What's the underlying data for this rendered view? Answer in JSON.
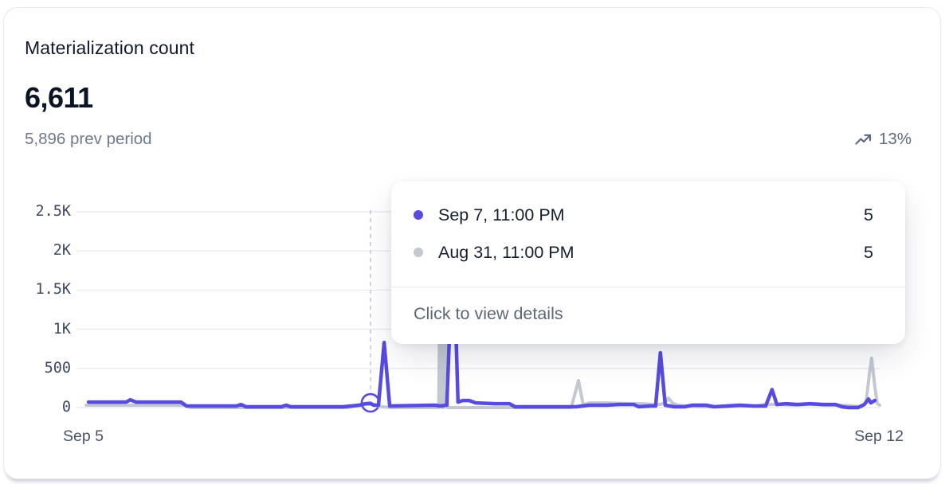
{
  "header": {
    "title": "Materialization count",
    "value": "6,611",
    "prev_period": "5,896 prev period",
    "trend_percent": "13%",
    "trend_direction": "up"
  },
  "tooltip": {
    "rows": [
      {
        "label": "Sep 7, 11:00 PM",
        "value": "5",
        "series": "current"
      },
      {
        "label": "Aug 31, 11:00 PM",
        "value": "5",
        "series": "previous"
      }
    ],
    "footer": "Click to view details"
  },
  "chart_data": {
    "type": "line",
    "title": "Materialization count",
    "total_current": 6611,
    "total_previous": 5896,
    "change_percent": 13,
    "xlabel": "",
    "ylabel": "",
    "x_axis": {
      "start_label": "Sep 5",
      "end_label": "Sep 12"
    },
    "y_ticks": [
      "2.5K",
      "2K",
      "1.5K",
      "1K",
      "500",
      "0"
    ],
    "y_tick_values": [
      2500,
      2000,
      1500,
      1000,
      500,
      0
    ],
    "ylim": [
      0,
      2650
    ],
    "grid": "horizontal",
    "legend_position": "tooltip",
    "colors": {
      "accent": "#574BE0",
      "previous": "#C3C8D1",
      "grid": "#E9EBEF",
      "crosshair": "#C9CED8"
    },
    "hover": {
      "x_frac": 0.366,
      "date": "Sep 7, 11:00 PM",
      "value": 5,
      "prev_date": "Aug 31, 11:00 PM",
      "prev_value": 5,
      "marker_display_value": 60
    },
    "series": [
      {
        "name": "current",
        "label": "Sep 7, 11:00 PM",
        "color": "#574BE0",
        "width": 4.5,
        "points": [
          [
            0.015,
            70
          ],
          [
            0.062,
            70
          ],
          [
            0.067,
            100
          ],
          [
            0.074,
            70
          ],
          [
            0.13,
            70
          ],
          [
            0.137,
            20
          ],
          [
            0.199,
            20
          ],
          [
            0.205,
            40
          ],
          [
            0.211,
            10
          ],
          [
            0.255,
            10
          ],
          [
            0.261,
            30
          ],
          [
            0.267,
            10
          ],
          [
            0.332,
            10
          ],
          [
            0.352,
            30
          ],
          [
            0.36,
            50
          ],
          [
            0.366,
            55
          ],
          [
            0.37,
            30
          ],
          [
            0.376,
            30
          ],
          [
            0.383,
            830
          ],
          [
            0.39,
            20
          ],
          [
            0.446,
            30
          ],
          [
            0.453,
            20
          ],
          [
            0.461,
            30
          ],
          [
            0.469,
            2150
          ],
          [
            0.475,
            70
          ],
          [
            0.481,
            90
          ],
          [
            0.489,
            90
          ],
          [
            0.497,
            60
          ],
          [
            0.521,
            50
          ],
          [
            0.539,
            50
          ],
          [
            0.546,
            10
          ],
          [
            0.6,
            10
          ],
          [
            0.622,
            10
          ],
          [
            0.638,
            30
          ],
          [
            0.66,
            30
          ],
          [
            0.675,
            40
          ],
          [
            0.694,
            40
          ],
          [
            0.7,
            10
          ],
          [
            0.714,
            20
          ],
          [
            0.721,
            20
          ],
          [
            0.727,
            700
          ],
          [
            0.733,
            30
          ],
          [
            0.744,
            10
          ],
          [
            0.757,
            10
          ],
          [
            0.767,
            30
          ],
          [
            0.784,
            30
          ],
          [
            0.794,
            10
          ],
          [
            0.81,
            20
          ],
          [
            0.826,
            30
          ],
          [
            0.843,
            20
          ],
          [
            0.858,
            20
          ],
          [
            0.866,
            230
          ],
          [
            0.872,
            40
          ],
          [
            0.883,
            50
          ],
          [
            0.898,
            40
          ],
          [
            0.913,
            50
          ],
          [
            0.93,
            40
          ],
          [
            0.945,
            40
          ],
          [
            0.953,
            10
          ],
          [
            0.961,
            0
          ],
          [
            0.973,
            0
          ],
          [
            0.981,
            40
          ],
          [
            0.986,
            110
          ],
          [
            0.989,
            60
          ],
          [
            0.994,
            90
          ]
        ]
      },
      {
        "name": "previous",
        "label": "Aug 31, 11:00 PM",
        "color": "#C3C8D1",
        "width": 4,
        "points": [
          [
            0.012,
            30
          ],
          [
            0.134,
            30
          ],
          [
            0.142,
            0
          ],
          [
            0.337,
            0
          ],
          [
            0.347,
            20
          ],
          [
            0.357,
            40
          ],
          [
            0.37,
            40
          ],
          [
            0.38,
            10
          ],
          [
            0.392,
            0
          ],
          [
            0.447,
            0
          ],
          [
            0.451,
            0
          ],
          [
            0.453,
            2200
          ],
          [
            0.455,
            0
          ],
          [
            0.457,
            0
          ],
          [
            0.459,
            2150
          ],
          [
            0.462,
            0
          ],
          [
            0.501,
            0
          ],
          [
            0.616,
            0
          ],
          [
            0.625,
            345
          ],
          [
            0.631,
            30
          ],
          [
            0.638,
            60
          ],
          [
            0.652,
            60
          ],
          [
            0.662,
            60
          ],
          [
            0.675,
            55
          ],
          [
            0.694,
            50
          ],
          [
            0.706,
            50
          ],
          [
            0.718,
            40
          ],
          [
            0.727,
            40
          ],
          [
            0.732,
            60
          ],
          [
            0.737,
            120
          ],
          [
            0.742,
            60
          ],
          [
            0.748,
            30
          ],
          [
            0.76,
            20
          ],
          [
            0.779,
            10
          ],
          [
            0.808,
            10
          ],
          [
            0.828,
            20
          ],
          [
            0.848,
            20
          ],
          [
            0.856,
            40
          ],
          [
            0.873,
            40
          ],
          [
            0.893,
            30
          ],
          [
            0.913,
            40
          ],
          [
            0.932,
            30
          ],
          [
            0.952,
            30
          ],
          [
            0.967,
            20
          ],
          [
            0.977,
            10
          ],
          [
            0.983,
            60
          ],
          [
            0.987,
            415
          ],
          [
            0.99,
            630
          ],
          [
            0.994,
            265
          ],
          [
            0.997,
            50
          ],
          [
            1.0,
            30
          ]
        ]
      }
    ]
  }
}
